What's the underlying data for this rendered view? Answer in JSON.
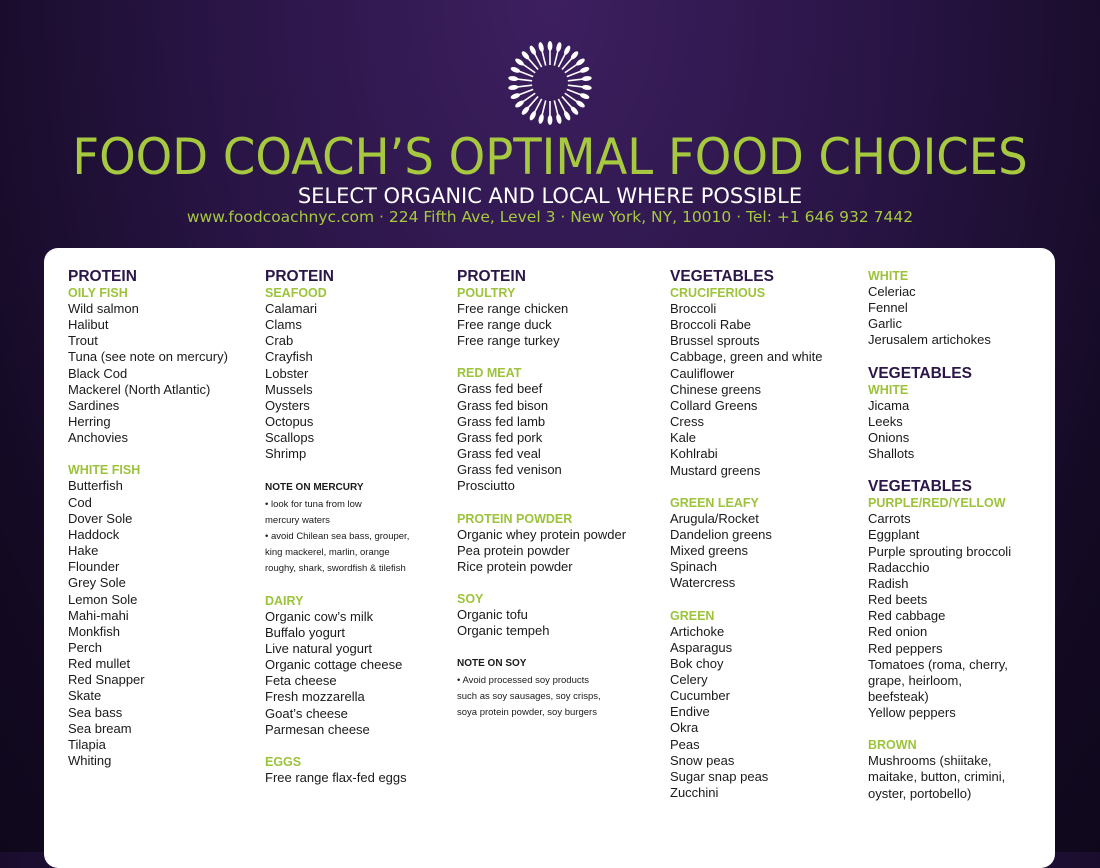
{
  "header": {
    "title": "FOOD COACH’S OPTIMAL FOOD CHOICES",
    "subtitle": "SELECT ORGANIC AND LOCAL WHERE POSSIBLE",
    "contact": "www.foodcoachnyc.com · 224 Fifth Ave, Level 3 · New York, NY, 10010 · Tel: +1 646 932 7442"
  },
  "colors": {
    "background": "#281444",
    "accent": "#a6c93f",
    "heading": "#2b1648",
    "panel": "#ffffff"
  },
  "columns": [
    {
      "sections": [
        {
          "heading": "PROTEIN",
          "subheading": "OILY FISH",
          "items": [
            "Wild salmon",
            "Halibut",
            "Trout",
            "Tuna (see note on mercury)",
            "Black Cod",
            "Mackerel (North Atlantic)",
            "Sardines",
            "Herring",
            "Anchovies"
          ]
        },
        {
          "subheading": "WHITE FISH",
          "items": [
            "Butterfish",
            "Cod",
            "Dover Sole",
            "Haddock",
            "Hake",
            "Flounder",
            "Grey Sole",
            "Lemon Sole",
            "Mahi-mahi",
            "Monkfish",
            "Perch",
            "Red mullet",
            "Red Snapper",
            "Skate",
            "Sea bass",
            "Sea bream",
            "Tilapia",
            "Whiting"
          ]
        }
      ]
    },
    {
      "sections": [
        {
          "heading": "PROTEIN",
          "subheading": "SEAFOOD",
          "items": [
            "Calamari",
            "Clams",
            "Crab",
            "Crayfish",
            "Lobster",
            "Mussels",
            "Oysters",
            "Octopus",
            "Scallops",
            "Shrimp"
          ]
        },
        {
          "note_heading": "NOTE ON MERCURY",
          "notes": [
            [
              "• look for tuna from low",
              "mercury waters"
            ],
            [
              "• avoid Chilean sea bass, grouper,",
              "king mackerel, marlin, orange",
              "roughy, shark, swordfish & tilefish"
            ]
          ]
        },
        {
          "subheading": "DAIRY",
          "items": [
            "Organic cow’s milk",
            "Buffalo yogurt",
            "Live natural yogurt",
            "Organic cottage cheese",
            "Feta cheese",
            "Fresh mozzarella",
            "Goat’s cheese",
            "Parmesan cheese"
          ]
        },
        {
          "subheading": "EGGS",
          "items": [
            "Free range flax-fed eggs"
          ]
        }
      ]
    },
    {
      "sections": [
        {
          "heading": "PROTEIN",
          "subheading": "POULTRY",
          "items": [
            "Free range chicken",
            "Free range duck",
            "Free range turkey"
          ]
        },
        {
          "subheading": "RED MEAT",
          "items": [
            "Grass fed beef",
            "Grass fed bison",
            "Grass fed lamb",
            "Grass fed pork",
            "Grass fed veal",
            "Grass fed venison",
            "Prosciutto"
          ]
        },
        {
          "subheading": "PROTEIN POWDER",
          "items": [
            "Organic whey protein powder",
            "Pea protein powder",
            "Rice protein powder"
          ]
        },
        {
          "subheading": "SOY",
          "items": [
            "Organic tofu",
            "Organic tempeh"
          ]
        },
        {
          "note_heading": "NOTE ON SOY",
          "notes": [
            [
              "• Avoid processed soy products",
              "such as soy sausages, soy crisps,",
              "soya protein powder, soy burgers"
            ]
          ]
        }
      ]
    },
    {
      "sections": [
        {
          "heading": "VEGETABLES",
          "subheading": "CRUCIFERIOUS",
          "items": [
            "Broccoli",
            "Broccoli Rabe",
            "Brussel sprouts",
            "Cabbage, green and white",
            "Cauliflower",
            "Chinese greens",
            "Collard Greens",
            "Cress",
            "Kale",
            "Kohlrabi",
            "Mustard greens"
          ]
        },
        {
          "subheading": "GREEN LEAFY",
          "items": [
            "Arugula/Rocket",
            "Dandelion greens",
            "Mixed greens",
            "Spinach",
            "Watercress"
          ]
        },
        {
          "subheading": "GREEN",
          "items": [
            "Artichoke",
            "Asparagus",
            "Bok choy",
            "Celery",
            "Cucumber",
            "Endive",
            "Okra",
            "Peas",
            "Snow peas",
            "Sugar snap peas",
            "Zucchini"
          ]
        }
      ]
    },
    {
      "sections": [
        {
          "subheading": "WHITE",
          "items": [
            "Celeriac",
            "Fennel",
            "Garlic",
            "Jerusalem artichokes"
          ]
        },
        {
          "heading": "VEGETABLES",
          "subheading": "WHITE",
          "items": [
            "Jicama",
            "Leeks",
            "Onions",
            "Shallots"
          ]
        },
        {
          "heading": "VEGETABLES",
          "subheading": "PURPLE/RED/YELLOW",
          "items": [
            "Carrots",
            "Eggplant",
            "Purple sprouting broccoli",
            "Radacchio",
            "Radish",
            "Red beets",
            "Red cabbage",
            "Red onion",
            "Red peppers",
            "Tomatoes (roma, cherry,",
            "grape, heirloom,",
            "beefsteak)",
            "Yellow peppers"
          ]
        },
        {
          "subheading": "BROWN",
          "items": [
            "Mushrooms (shiitake,",
            "maitake, button, crimini,",
            "oyster, portobello)"
          ]
        }
      ]
    }
  ]
}
